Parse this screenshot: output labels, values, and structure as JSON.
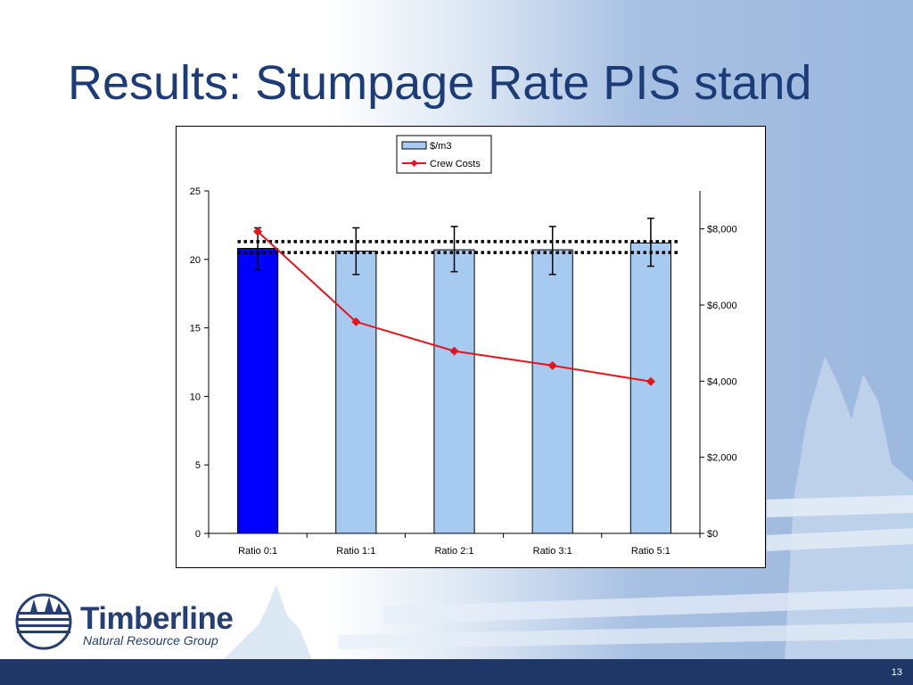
{
  "slide": {
    "title": "Results: Stumpage Rate PIS stand",
    "page_number": "13"
  },
  "logo": {
    "name": "Timberline",
    "subtitle": "Natural Resource Group"
  },
  "colors": {
    "title": "#1b3c78",
    "bar_highlight": "#0000ff",
    "bar_default": "#a6caf0",
    "crew_line": "#e8141b",
    "footer": "#1e3766"
  },
  "chart_data": {
    "type": "bar",
    "categories": [
      "Ratio 0:1",
      "Ratio 1:1",
      "Ratio 2:1",
      "Ratio 3:1",
      "Ratio 5:1"
    ],
    "series": [
      {
        "name": "$/m3",
        "type": "bar",
        "axis": "left",
        "values": [
          20.8,
          20.6,
          20.7,
          20.7,
          21.2
        ],
        "error_low": [
          19.2,
          18.9,
          19.1,
          18.9,
          19.5
        ],
        "error_high": [
          22.3,
          22.3,
          22.4,
          22.4,
          23.0
        ]
      },
      {
        "name": "Crew Costs",
        "type": "line",
        "axis": "right",
        "values": [
          7930,
          5560,
          4790,
          4410,
          3990
        ]
      }
    ],
    "reference_lines": [
      21.3,
      20.5
    ],
    "left_axis": {
      "min": 0,
      "max": 25,
      "ticks": [
        0,
        5,
        10,
        15,
        20,
        25
      ],
      "tick_labels": [
        "0",
        "5",
        "10",
        "15",
        "20",
        "25"
      ]
    },
    "right_axis": {
      "min": 0,
      "max": 9000,
      "ticks": [
        0,
        2000,
        4000,
        6000,
        8000
      ],
      "tick_labels": [
        "$0",
        "$2,000",
        "$4,000",
        "$6,000",
        "$8,000"
      ]
    },
    "legend": {
      "placement": "top-center",
      "entries": [
        "$/m3",
        "Crew Costs"
      ]
    },
    "grid": false,
    "title": "",
    "xlabel": "",
    "ylabel": ""
  }
}
